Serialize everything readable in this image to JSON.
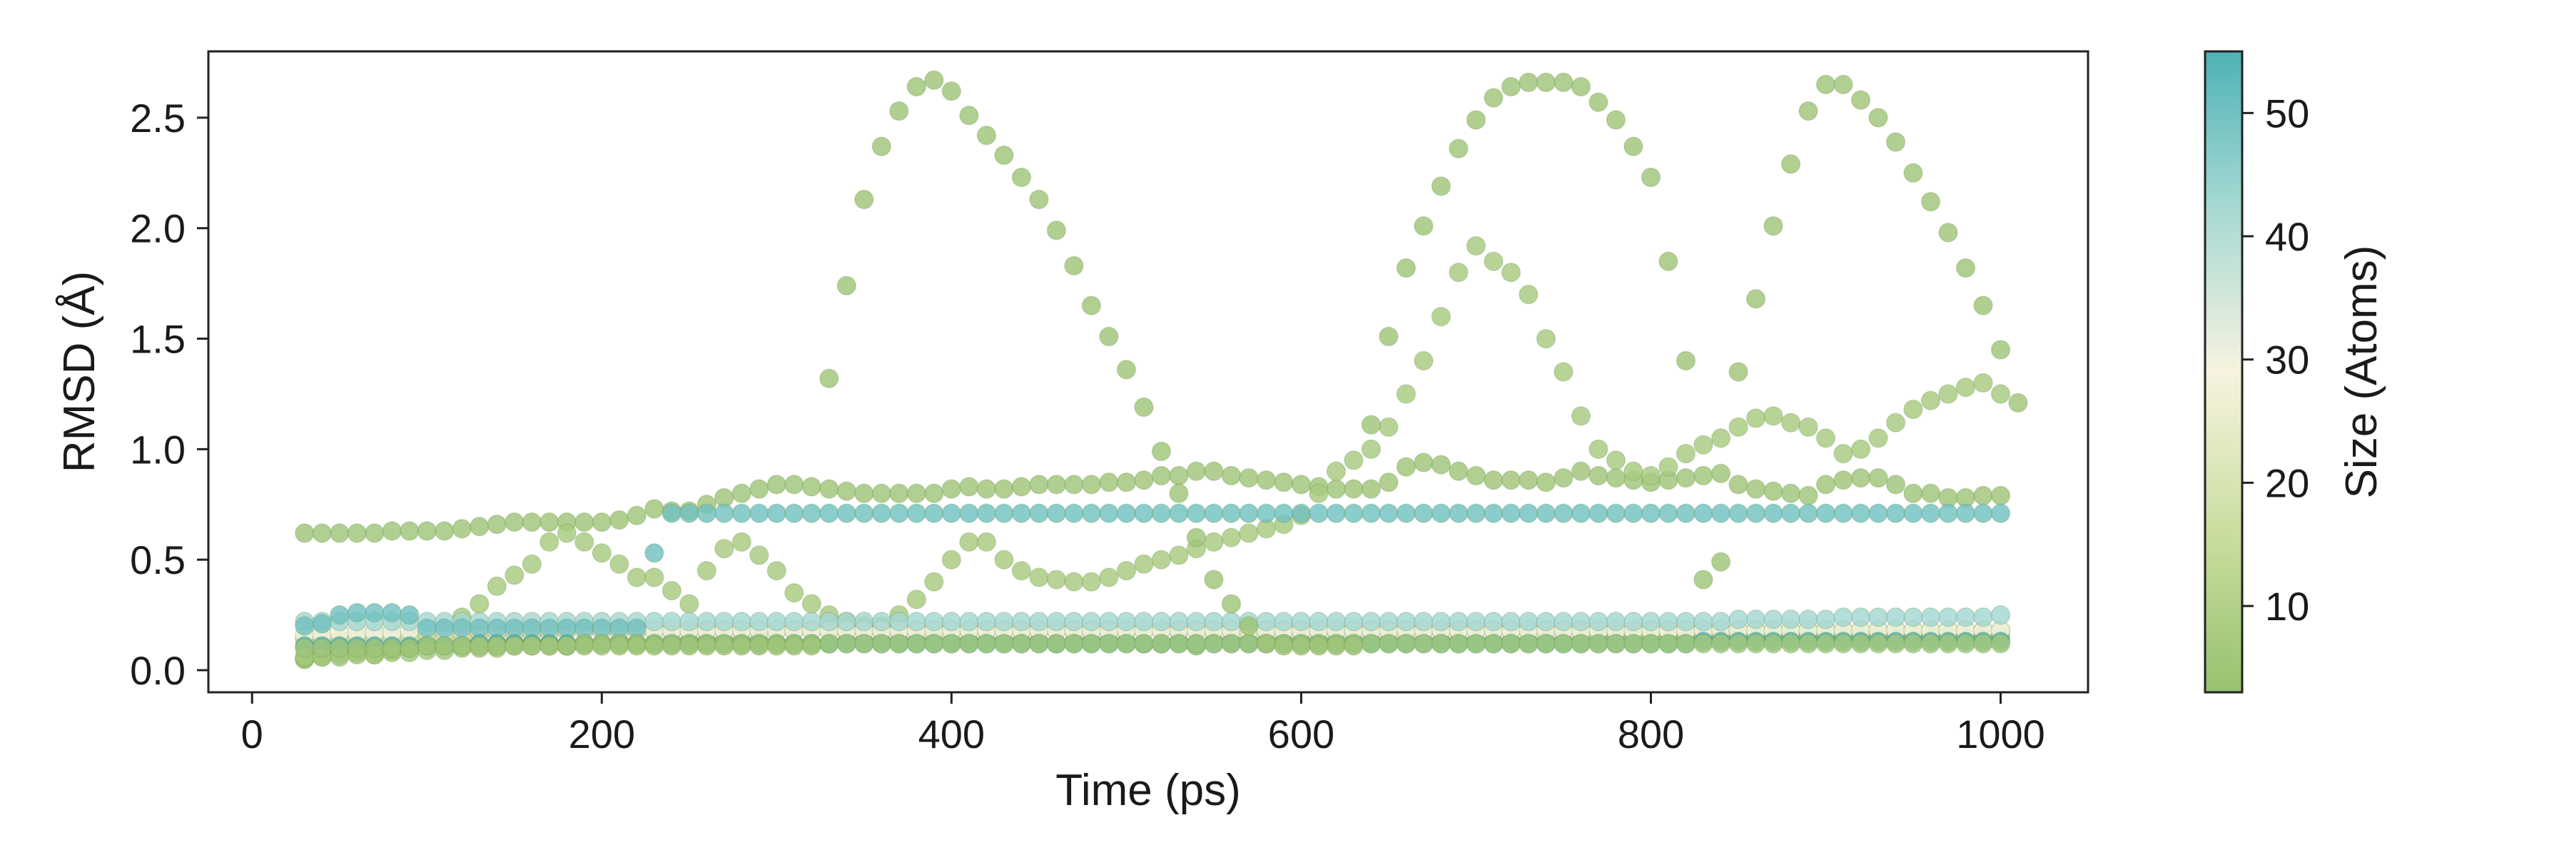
{
  "chart_data": {
    "type": "scatter",
    "xlabel": "Time (ps)",
    "ylabel": "RMSD (Å)",
    "xlim": [
      -25,
      1050
    ],
    "ylim": [
      -0.1,
      2.8
    ],
    "xticks": [
      0,
      200,
      400,
      600,
      800,
      1000
    ],
    "yticks": [
      0.0,
      0.5,
      1.0,
      1.5,
      2.0,
      2.5
    ],
    "grid": false,
    "colorbar": {
      "label": "Size (Atoms)",
      "range": [
        3,
        55
      ],
      "ticks": [
        10,
        20,
        30,
        40,
        50
      ],
      "colormap": [
        "#98c170",
        "#c9dea0",
        "#f7f3df",
        "#a9dad4",
        "#4eb2b5"
      ]
    },
    "x_start": 30,
    "x_step": 10,
    "series": [
      {
        "size_atoms": 5,
        "y": [
          0.62,
          0.62,
          0.62,
          0.62,
          0.62,
          0.63,
          0.63,
          0.63,
          0.63,
          0.64,
          0.65,
          0.66,
          0.67,
          0.67,
          0.67,
          0.67,
          0.67,
          0.67,
          0.68,
          0.7,
          0.73,
          0.72,
          0.72,
          0.75,
          0.78,
          0.8,
          0.82,
          0.84,
          0.84,
          0.83,
          0.82,
          0.81,
          0.8,
          0.8,
          0.8,
          0.8,
          0.8,
          0.82,
          0.83,
          0.82,
          0.82,
          0.83,
          0.84,
          0.84,
          0.84,
          0.84,
          0.85,
          0.85,
          0.86,
          0.88,
          0.88,
          0.9,
          0.9,
          0.88,
          0.87,
          0.86,
          0.85,
          0.84,
          0.83,
          0.82,
          0.82,
          0.82,
          0.85,
          0.92,
          0.94,
          0.93,
          0.9,
          0.88,
          0.86,
          0.86,
          0.86,
          0.85,
          0.87,
          0.9,
          0.88,
          0.87,
          0.86,
          0.85,
          0.86,
          0.87,
          0.88,
          0.89,
          0.84,
          0.82,
          0.81,
          0.8,
          0.79,
          0.84,
          0.86,
          0.87,
          0.87,
          0.84,
          0.8,
          0.8,
          0.78,
          0.78,
          0.79,
          0.79
        ]
      },
      {
        "size_atoms": 7,
        "y": [
          0.05,
          0.07,
          0.08,
          0.08,
          0.07,
          0.09,
          0.1,
          0.12,
          0.18,
          0.24,
          0.3,
          0.38,
          0.43,
          0.48,
          0.58,
          0.62,
          0.58,
          0.53,
          0.48,
          0.42,
          0.42,
          0.36,
          0.3,
          0.45,
          0.55,
          0.58,
          0.52,
          0.45,
          0.35,
          0.3,
          0.25,
          0.22,
          0.2,
          0.2,
          0.25,
          0.32,
          0.4,
          0.5,
          0.58,
          0.58,
          0.5,
          0.45,
          0.42,
          0.41,
          0.4,
          0.4,
          0.42,
          0.45,
          0.48,
          0.5,
          0.52,
          0.55,
          0.58,
          0.6,
          0.62,
          0.64,
          0.66,
          0.7,
          0.8,
          0.9,
          0.95,
          1.0,
          1.1,
          1.25,
          1.4,
          1.6,
          1.8,
          1.92,
          1.85,
          1.8,
          1.7,
          1.5,
          1.35,
          1.15,
          1.0,
          0.95,
          0.9,
          0.88,
          0.92,
          0.98,
          1.02,
          1.05,
          1.1,
          1.14,
          1.15,
          1.12,
          1.1,
          1.05,
          0.98,
          1.0,
          1.05,
          1.12,
          1.18,
          1.22,
          1.25,
          1.28,
          1.3,
          1.25
        ]
      },
      {
        "size_atoms": 4,
        "y": [
          0.05,
          0.06,
          0.07,
          0.08,
          0.08,
          0.09,
          0.1,
          0.11,
          0.11,
          0.12,
          0.12,
          0.12,
          0.12,
          0.12,
          0.12,
          0.11,
          0.12,
          0.12,
          0.13,
          0.12,
          0.12,
          0.13,
          0.13,
          0.13,
          0.13,
          0.13,
          0.13,
          0.12,
          0.12,
          0.12,
          0.12,
          0.13,
          0.13,
          0.13,
          0.13,
          0.13,
          0.13,
          0.13,
          0.13,
          0.13,
          0.13,
          0.13,
          0.13,
          0.12,
          0.13,
          0.13,
          0.13,
          0.13,
          0.12,
          0.12,
          0.13,
          0.11,
          0.13,
          0.13,
          0.13,
          0.13,
          0.13,
          0.13,
          0.13,
          0.13,
          0.13,
          0.13,
          0.13,
          0.13,
          0.13,
          0.13,
          0.13,
          0.13,
          0.13,
          0.13,
          0.13,
          0.13,
          0.13,
          0.13,
          0.14,
          0.14,
          0.14,
          0.14,
          0.14,
          0.14,
          0.14,
          0.14,
          0.14,
          0.15,
          0.15,
          0.15,
          0.15,
          0.15,
          0.15,
          0.15,
          0.15,
          0.15,
          0.15,
          0.15,
          0.15,
          0.15,
          0.15,
          0.15
        ]
      },
      {
        "size_atoms": 16,
        "y": [
          0.14,
          0.14,
          0.14,
          0.15,
          0.15,
          0.15,
          0.15,
          0.16,
          0.16,
          0.16,
          0.17,
          0.17,
          0.17,
          0.17,
          0.17,
          0.18,
          0.18,
          0.18,
          0.18,
          0.18,
          0.18,
          0.18,
          0.18,
          0.18,
          0.18,
          0.18,
          0.18,
          0.18,
          0.18,
          0.18,
          0.18,
          0.18,
          0.18,
          0.18,
          0.18,
          0.18,
          0.18,
          0.18,
          0.18,
          0.18,
          0.18,
          0.18,
          0.18,
          0.18,
          0.18,
          0.18,
          0.18,
          0.18,
          0.18,
          0.18,
          0.18,
          0.18,
          0.18,
          0.18,
          0.18,
          0.18,
          0.18,
          0.18,
          0.18,
          0.18,
          0.18,
          0.18,
          0.18,
          0.18,
          0.18,
          0.18,
          0.18,
          0.18,
          0.18,
          0.18,
          0.18,
          0.18,
          0.18,
          0.18,
          0.18,
          0.18,
          0.18,
          0.18,
          0.18,
          0.18,
          0.18,
          0.18,
          0.18,
          0.18,
          0.18,
          0.18,
          0.18,
          0.18,
          0.18,
          0.18,
          0.18,
          0.18,
          0.18,
          0.18,
          0.18,
          0.18,
          0.18,
          0.18
        ]
      },
      {
        "size_atoms": 30,
        "y": [
          0.16,
          0.16,
          0.17,
          0.17,
          0.17,
          0.17,
          0.18,
          0.18,
          0.18,
          0.18,
          0.18,
          0.18,
          0.18,
          0.18,
          0.18,
          0.18,
          0.18,
          0.18,
          0.18,
          0.18,
          0.18,
          0.18,
          0.18,
          0.18,
          0.18,
          0.18,
          0.18,
          0.18,
          0.18,
          0.18,
          0.18,
          0.18,
          0.18,
          0.18,
          0.18,
          0.18,
          0.18,
          0.18,
          0.18,
          0.18,
          0.18,
          0.18,
          0.18,
          0.18,
          0.18,
          0.18,
          0.18,
          0.18,
          0.18,
          0.18,
          0.18,
          0.18,
          0.18,
          0.18,
          0.18,
          0.18,
          0.18,
          0.18,
          0.18,
          0.18,
          0.18,
          0.18,
          0.18,
          0.18,
          0.18,
          0.18,
          0.18,
          0.18,
          0.18,
          0.18,
          0.18,
          0.18,
          0.18,
          0.18,
          0.18,
          0.18,
          0.18,
          0.18,
          0.18,
          0.18,
          0.18,
          0.18,
          0.18,
          0.18,
          0.18,
          0.18,
          0.18,
          0.18,
          0.18,
          0.18,
          0.18,
          0.18,
          0.18,
          0.18,
          0.18,
          0.18,
          0.18,
          0.18
        ]
      },
      {
        "size_atoms": 43,
        "y": [
          0.22,
          0.22,
          0.22,
          0.22,
          0.22,
          0.22,
          0.22,
          0.22,
          0.22,
          0.22,
          0.22,
          0.22,
          0.22,
          0.22,
          0.22,
          0.22,
          0.22,
          0.22,
          0.22,
          0.22,
          0.22,
          0.22,
          0.22,
          0.22,
          0.22,
          0.22,
          0.22,
          0.22,
          0.22,
          0.22,
          0.22,
          0.22,
          0.22,
          0.22,
          0.22,
          0.22,
          0.22,
          0.22,
          0.22,
          0.22,
          0.22,
          0.22,
          0.22,
          0.22,
          0.22,
          0.22,
          0.22,
          0.22,
          0.22,
          0.22,
          0.22,
          0.22,
          0.22,
          0.22,
          0.22,
          0.22,
          0.22,
          0.22,
          0.22,
          0.22,
          0.22,
          0.22,
          0.22,
          0.22,
          0.22,
          0.22,
          0.22,
          0.22,
          0.22,
          0.22,
          0.22,
          0.22,
          0.22,
          0.22,
          0.22,
          0.22,
          0.22,
          0.22,
          0.22,
          0.22,
          0.22,
          0.22,
          0.23,
          0.23,
          0.23,
          0.23,
          0.23,
          0.23,
          0.24,
          0.24,
          0.24,
          0.24,
          0.24,
          0.24,
          0.24,
          0.24,
          0.24,
          0.25
        ]
      },
      {
        "size_atoms": 50,
        "y": [
          0.2,
          0.21,
          0.25,
          0.26,
          0.26,
          0.26,
          0.25,
          0.19,
          0.19,
          0.19,
          0.19,
          0.19,
          0.19,
          0.19,
          0.19,
          0.19,
          0.19,
          0.19,
          0.19,
          0.19,
          0.53,
          0.71,
          0.71,
          0.71,
          0.71,
          0.71,
          0.71,
          0.71,
          0.71,
          0.71,
          0.71,
          0.71,
          0.71,
          0.71,
          0.71,
          0.71,
          0.71,
          0.71,
          0.71,
          0.71,
          0.71,
          0.71,
          0.71,
          0.71,
          0.71,
          0.71,
          0.71,
          0.71,
          0.71,
          0.71,
          0.71,
          0.71,
          0.71,
          0.71,
          0.71,
          0.71,
          0.71,
          0.71,
          0.71,
          0.71,
          0.71,
          0.71,
          0.71,
          0.71,
          0.71,
          0.71,
          0.71,
          0.71,
          0.71,
          0.71,
          0.71,
          0.71,
          0.71,
          0.71,
          0.71,
          0.71,
          0.71,
          0.71,
          0.71,
          0.71,
          0.71,
          0.71,
          0.71,
          0.71,
          0.71,
          0.71,
          0.71,
          0.71,
          0.71,
          0.71,
          0.71,
          0.71,
          0.71,
          0.71,
          0.71,
          0.71,
          0.71,
          0.71
        ]
      },
      {
        "size_atoms": 55,
        "y": [
          0.11,
          0.11,
          0.11,
          0.11,
          0.11,
          0.11,
          0.11,
          0.11,
          0.11,
          0.11,
          0.12,
          0.12,
          0.12,
          0.12,
          0.12,
          0.12,
          0.12,
          0.12,
          0.12,
          0.12,
          0.12,
          0.12,
          0.12,
          0.12,
          0.12,
          0.12,
          0.12,
          0.12,
          0.12,
          0.12,
          0.12,
          0.12,
          0.12,
          0.12,
          0.12,
          0.12,
          0.12,
          0.12,
          0.12,
          0.12,
          0.12,
          0.12,
          0.12,
          0.12,
          0.12,
          0.12,
          0.12,
          0.12,
          0.12,
          0.12,
          0.12,
          0.12,
          0.12,
          0.12,
          0.12,
          0.12,
          0.12,
          0.12,
          0.12,
          0.12,
          0.12,
          0.12,
          0.12,
          0.12,
          0.12,
          0.12,
          0.12,
          0.12,
          0.12,
          0.12,
          0.12,
          0.12,
          0.12,
          0.12,
          0.12,
          0.12,
          0.12,
          0.12,
          0.12,
          0.12,
          0.13,
          0.13,
          0.13,
          0.13,
          0.13,
          0.13,
          0.13,
          0.13,
          0.13,
          0.13,
          0.13,
          0.13,
          0.13,
          0.13,
          0.13,
          0.13,
          0.13,
          0.13
        ]
      },
      {
        "size_atoms": 6,
        "y": [
          0.06,
          0.06,
          0.06,
          0.07,
          0.07,
          0.08,
          0.08,
          0.09,
          0.09,
          0.1,
          0.1,
          0.1,
          0.11,
          0.11,
          0.11,
          0.11,
          0.12,
          0.12,
          0.12,
          0.12,
          0.12,
          0.12,
          0.12,
          0.12,
          0.12,
          0.12,
          0.12,
          0.12,
          0.12,
          0.12,
          0.12,
          0.12,
          0.12,
          0.12,
          0.12,
          0.12,
          0.12,
          0.12,
          0.12,
          0.12,
          0.12,
          0.12,
          0.12,
          0.12,
          0.12,
          0.12,
          0.12,
          0.12,
          0.12,
          0.12,
          0.12,
          0.12,
          0.12,
          0.12,
          0.12,
          0.12,
          0.12,
          0.12,
          0.12,
          0.12,
          0.12,
          0.12,
          0.12,
          0.12,
          0.12,
          0.12,
          0.12,
          0.12,
          0.12,
          0.12,
          0.12,
          0.12,
          0.12,
          0.12,
          0.12,
          0.12,
          0.12,
          0.12,
          0.12,
          0.12,
          0.12,
          0.12,
          0.12,
          0.12,
          0.12,
          0.12,
          0.12,
          0.12,
          0.12,
          0.12,
          0.12,
          0.12,
          0.12,
          0.12,
          0.12,
          0.12,
          0.12,
          0.12
        ]
      },
      {
        "size_atoms": 5,
        "y": [
          0.1,
          0.1,
          0.1,
          0.1,
          0.1,
          0.1,
          0.1,
          0.11,
          0.11,
          0.11,
          0.11,
          0.11,
          0.11,
          0.11,
          0.11,
          0.11,
          0.11,
          0.11,
          0.11,
          0.11,
          0.11,
          0.11,
          0.11,
          0.11,
          0.11,
          0.11,
          0.11,
          0.11,
          0.11,
          0.11,
          1.32,
          1.74,
          2.13,
          2.37,
          2.53,
          2.64,
          2.67,
          2.62,
          2.51,
          2.42,
          2.33,
          2.23,
          2.13,
          1.99,
          1.83,
          1.65,
          1.51,
          1.36,
          1.19,
          0.99,
          0.8,
          0.6,
          0.41,
          0.3,
          0.2,
          0.12,
          0.11,
          0.11,
          0.11,
          0.11,
          0.11,
          1.11,
          1.51,
          1.82,
          2.01,
          2.19,
          2.36,
          2.49,
          2.59,
          2.64,
          2.66,
          2.66,
          2.66,
          2.64,
          2.57,
          2.49,
          2.37,
          2.23,
          1.85,
          1.4,
          0.41,
          0.49,
          1.35,
          1.68,
          2.01,
          2.29,
          2.53,
          2.65,
          2.65,
          2.58,
          2.5,
          2.39,
          2.25,
          2.12,
          1.98,
          1.82,
          1.65,
          1.45,
          1.21
        ]
      }
    ]
  }
}
